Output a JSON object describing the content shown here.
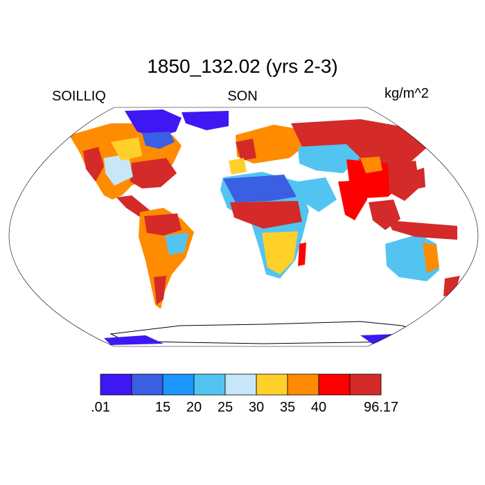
{
  "plot": {
    "title": "1850_132.02 (yrs 2-3)",
    "left_label": "SOILLIQ",
    "center_label": "SON",
    "right_label": "kg/m^2"
  },
  "colorbar": {
    "colors": [
      "#3f17f2",
      "#3a5fe3",
      "#1e96ff",
      "#53c4f2",
      "#c7e6f8",
      "#ffd029",
      "#ff8b00",
      "#ff0000",
      "#d42a2a"
    ],
    "tick_labels": [
      ".01",
      "",
      "15",
      "20",
      "25",
      "30",
      "35",
      "40",
      "",
      "96.17"
    ]
  },
  "map": {
    "projection": "Robinson",
    "field": "soil liquid water",
    "ocean_color": "#ffffff"
  }
}
